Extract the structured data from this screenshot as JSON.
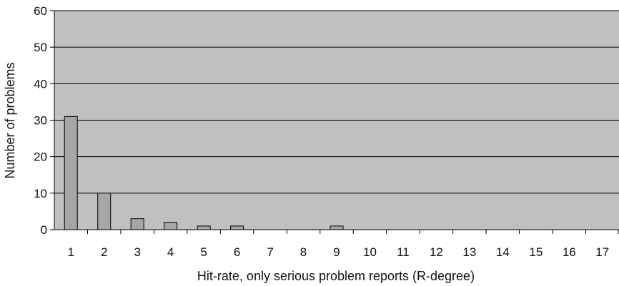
{
  "chart_data": {
    "type": "bar",
    "title": "",
    "xlabel": "Hit-rate, only serious problem reports (R-degree)",
    "ylabel": "Number of problems",
    "categories": [
      "1",
      "2",
      "3",
      "4",
      "5",
      "6",
      "7",
      "8",
      "9",
      "10",
      "11",
      "12",
      "13",
      "14",
      "15",
      "16",
      "17"
    ],
    "values": [
      31,
      10,
      3,
      2,
      1,
      1,
      0,
      0,
      1,
      0,
      0,
      0,
      0,
      0,
      0,
      0,
      0
    ],
    "ylim": [
      0,
      60
    ],
    "yticks": [
      0,
      10,
      20,
      30,
      40,
      50,
      60
    ],
    "grid": true,
    "legend": "none",
    "colors": {
      "plot_background": "#c0c0c0",
      "bar_fill": "#a6a6a6",
      "bar_stroke": "#000000",
      "gridline": "#000000",
      "axis": "#000000"
    }
  }
}
